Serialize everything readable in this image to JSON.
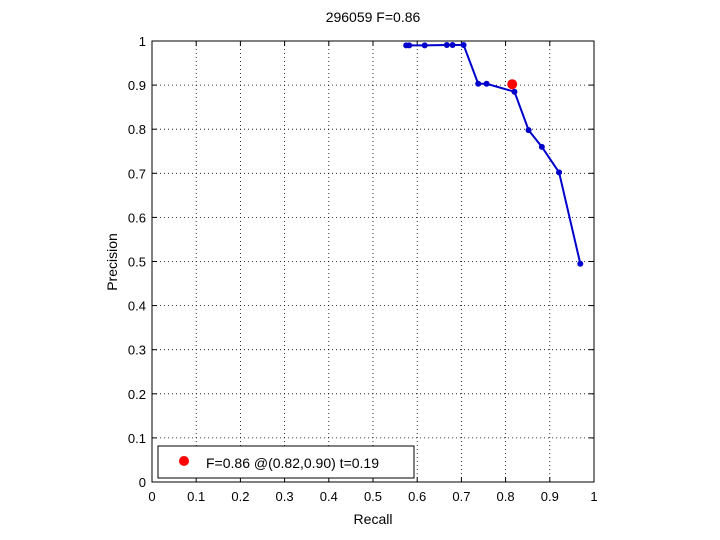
{
  "chart_data": {
    "type": "line",
    "title": "296059 F=0.86",
    "xlabel": "Recall",
    "ylabel": "Precision",
    "xlim": [
      0,
      1
    ],
    "ylim": [
      0,
      1
    ],
    "xticks": [
      "0",
      "0.1",
      "0.2",
      "0.3",
      "0.4",
      "0.5",
      "0.6",
      "0.7",
      "0.8",
      "0.9",
      "1"
    ],
    "yticks": [
      "0",
      "0.1",
      "0.2",
      "0.3",
      "0.4",
      "0.5",
      "0.6",
      "0.7",
      "0.8",
      "0.9",
      "1"
    ],
    "grid": true,
    "legend_position": "bottom-left",
    "series": [
      {
        "color": "#0000cc",
        "x": [
          0.575,
          0.582,
          0.617,
          0.667,
          0.68,
          0.705,
          0.738,
          0.757,
          0.82,
          0.852,
          0.882,
          0.921,
          0.969
        ],
        "y": [
          0.99,
          0.99,
          0.99,
          0.991,
          0.991,
          0.991,
          0.903,
          0.903,
          0.885,
          0.798,
          0.76,
          0.702,
          0.495
        ]
      }
    ],
    "best_point": {
      "color": "#ff0000",
      "x": 0.815,
      "y": 0.902,
      "label": "F=0.86 @(0.82,0.90) t=0.19"
    }
  }
}
